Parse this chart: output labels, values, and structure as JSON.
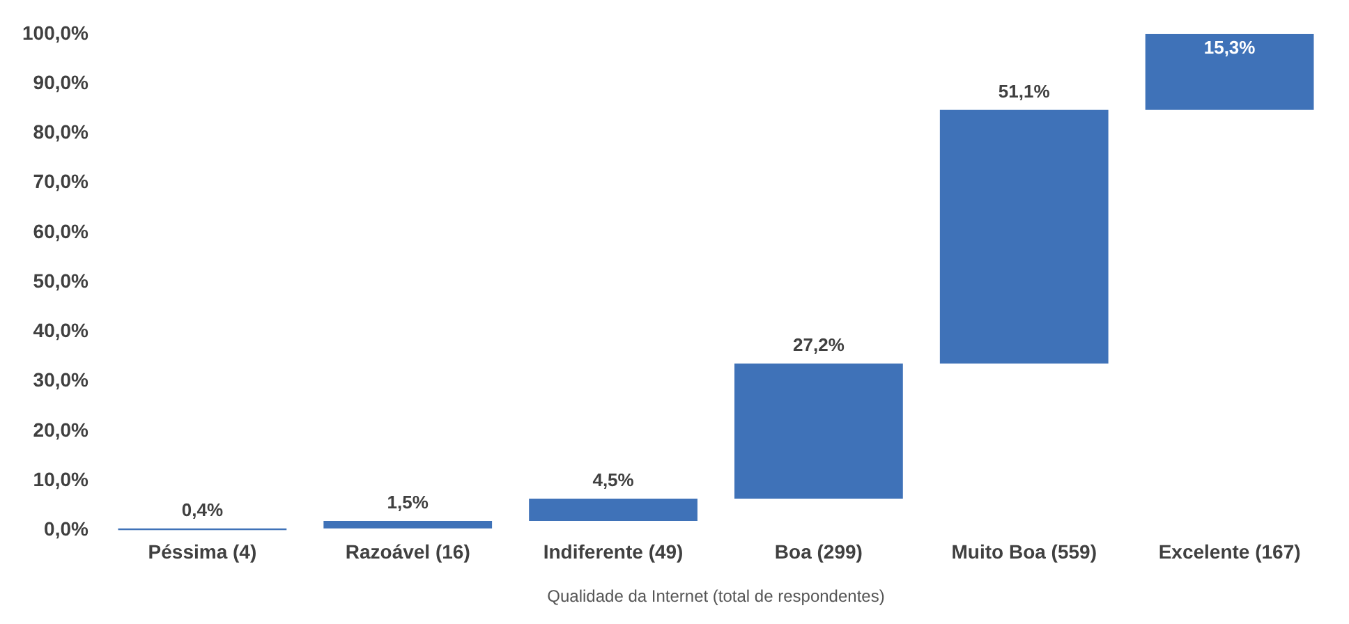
{
  "chart_data": {
    "type": "bar",
    "xlabel": "Qualidade da Internet (total de respondentes)",
    "categories": [
      "Péssima (4)",
      "Razoável (16)",
      "Indiferente (49)",
      "Boa (299)",
      "Muito Boa (559)",
      "Excelente (167)"
    ],
    "values": [
      0.4,
      1.5,
      4.5,
      27.2,
      51.1,
      15.3
    ],
    "base": [
      0,
      0.4,
      1.9,
      6.4,
      33.6,
      84.7
    ],
    "value_labels": [
      "0,4%",
      "1,5%",
      "4,5%",
      "27,2%",
      "51,1%",
      "15,3%"
    ],
    "color": "#3f72b8",
    "ylim": [
      0,
      100
    ],
    "yticks": [
      {
        "value": 0,
        "label": "0,0%"
      },
      {
        "value": 10,
        "label": "10,0%"
      },
      {
        "value": 20,
        "label": "20,0%"
      },
      {
        "value": 30,
        "label": "30,0%"
      },
      {
        "value": 40,
        "label": "40,0%"
      },
      {
        "value": 50,
        "label": "50,0%"
      },
      {
        "value": 60,
        "label": "60,0%"
      },
      {
        "value": 70,
        "label": "70,0%"
      },
      {
        "value": 80,
        "label": "80,0%"
      },
      {
        "value": 90,
        "label": "90,0%"
      },
      {
        "value": 100,
        "label": "100,0%"
      }
    ],
    "grid": false,
    "legend": false
  }
}
